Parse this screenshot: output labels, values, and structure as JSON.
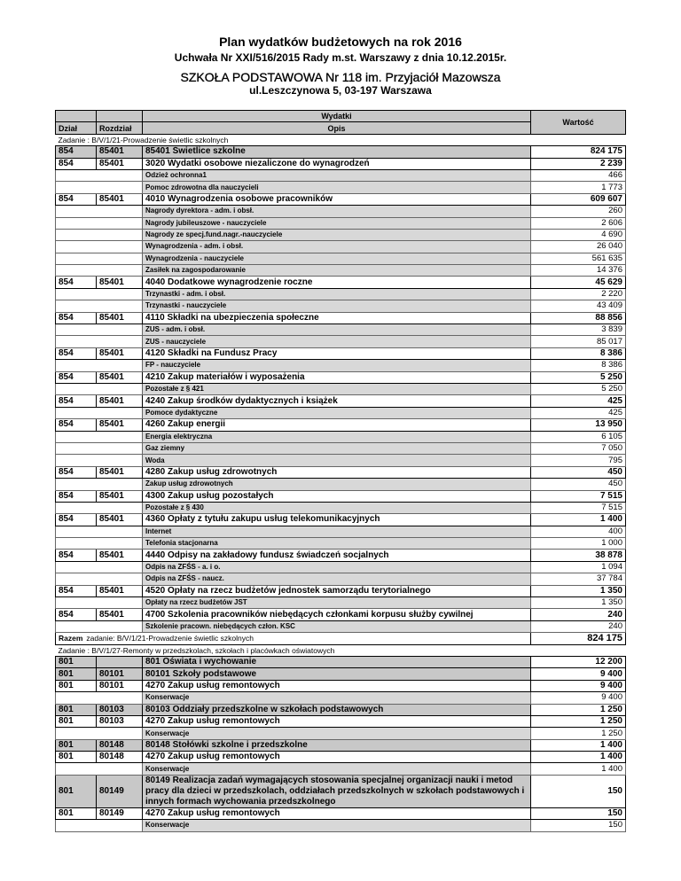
{
  "header": {
    "title": "Plan wydatków budżetowych na rok 2016",
    "resolution": "Uchwała Nr XXI/516/2015 Rady m.st. Warszawy z dnia 10.12.2015r.",
    "school": "SZKOŁA PODSTAWOWA Nr 118 im. Przyjaciół Mazowsza",
    "address": "ul.Leszczynowa 5, 03-197 Warszawa"
  },
  "table": {
    "columns": {
      "group": "Wydatki",
      "dzial": "Dział",
      "rozdzial": "Rozdział",
      "opis": "Opis",
      "wartosc": "Wartość"
    },
    "rows": [
      {
        "style": "section",
        "opis": "Zadanie : B/V/1/21-Prowadzenie świetlic szkolnych"
      },
      {
        "style": "chapter",
        "dzial": "854",
        "rozdzial": "85401",
        "opis": "85401 Świetlice szkolne",
        "wartosc": "824 175"
      },
      {
        "style": "para",
        "dzial": "854",
        "rozdzial": "85401",
        "opis": "3020 Wydatki osobowe niezaliczone do wynagrodzeń",
        "wartosc": "2 239"
      },
      {
        "style": "sub",
        "opis": "Odzież ochronna1",
        "wartosc": "466"
      },
      {
        "style": "sub",
        "opis": "Pomoc zdrowotna dla nauczycieli",
        "wartosc": "1 773"
      },
      {
        "style": "para",
        "dzial": "854",
        "rozdzial": "85401",
        "opis": "4010 Wynagrodzenia osobowe pracowników",
        "wartosc": "609 607"
      },
      {
        "style": "sub",
        "opis": "Nagrody dyrektora - adm. i obsł.",
        "wartosc": "260"
      },
      {
        "style": "sub",
        "opis": "Nagrody jubileuszowe - nauczyciele",
        "wartosc": "2 606"
      },
      {
        "style": "sub",
        "opis": "Nagrody ze specj.fund.nagr.-nauczyciele",
        "wartosc": "4 690"
      },
      {
        "style": "sub",
        "opis": "Wynagrodzenia - adm. i obsł.",
        "wartosc": "26 040"
      },
      {
        "style": "sub",
        "opis": "Wynagrodzenia - nauczyciele",
        "wartosc": "561 635"
      },
      {
        "style": "sub",
        "opis": "Zasiłek na zagospodarowanie",
        "wartosc": "14 376"
      },
      {
        "style": "para",
        "dzial": "854",
        "rozdzial": "85401",
        "opis": "4040 Dodatkowe wynagrodzenie roczne",
        "wartosc": "45 629"
      },
      {
        "style": "sub",
        "opis": "Trzynastki - adm. i obsł.",
        "wartosc": "2 220"
      },
      {
        "style": "sub",
        "opis": "Trzynastki - nauczyciele",
        "wartosc": "43 409"
      },
      {
        "style": "para",
        "dzial": "854",
        "rozdzial": "85401",
        "opis": "4110 Składki na ubezpieczenia społeczne",
        "wartosc": "88 856"
      },
      {
        "style": "sub",
        "opis": "ZUS - adm. i obsł.",
        "wartosc": "3 839"
      },
      {
        "style": "sub",
        "opis": "ZUS - nauczyciele",
        "wartosc": "85 017"
      },
      {
        "style": "para",
        "dzial": "854",
        "rozdzial": "85401",
        "opis": "4120 Składki na Fundusz Pracy",
        "wartosc": "8 386"
      },
      {
        "style": "sub",
        "opis": "FP - nauczyciele",
        "wartosc": "8 386"
      },
      {
        "style": "para",
        "dzial": "854",
        "rozdzial": "85401",
        "opis": "4210 Zakup materiałów i wyposażenia",
        "wartosc": "5 250"
      },
      {
        "style": "sub",
        "opis": "Pozostałe z § 421",
        "wartosc": "5 250"
      },
      {
        "style": "para",
        "dzial": "854",
        "rozdzial": "85401",
        "opis": "4240 Zakup środków dydaktycznych i książek",
        "wartosc": "425"
      },
      {
        "style": "sub",
        "opis": "Pomoce dydaktyczne",
        "wartosc": "425"
      },
      {
        "style": "para",
        "dzial": "854",
        "rozdzial": "85401",
        "opis": "4260 Zakup energii",
        "wartosc": "13 950"
      },
      {
        "style": "sub",
        "opis": "Energia elektryczna",
        "wartosc": "6 105"
      },
      {
        "style": "sub",
        "opis": "Gaz ziemny",
        "wartosc": "7 050"
      },
      {
        "style": "sub",
        "opis": "Woda",
        "wartosc": "795"
      },
      {
        "style": "para",
        "dzial": "854",
        "rozdzial": "85401",
        "opis": "4280 Zakup usług zdrowotnych",
        "wartosc": "450"
      },
      {
        "style": "sub",
        "opis": "Zakup usług zdrowotnych",
        "wartosc": "450"
      },
      {
        "style": "para",
        "dzial": "854",
        "rozdzial": "85401",
        "opis": "4300 Zakup usług pozostałych",
        "wartosc": "7 515"
      },
      {
        "style": "sub",
        "opis": "Pozostałe z § 430",
        "wartosc": "7 515"
      },
      {
        "style": "para",
        "dzial": "854",
        "rozdzial": "85401",
        "opis": "4360 Opłaty z tytułu zakupu usług telekomunikacyjnych",
        "wartosc": "1 400"
      },
      {
        "style": "sub",
        "opis": "Internet",
        "wartosc": "400"
      },
      {
        "style": "sub",
        "opis": "Telefonia stacjonarna",
        "wartosc": "1 000"
      },
      {
        "style": "para",
        "dzial": "854",
        "rozdzial": "85401",
        "opis": "4440 Odpisy na zakładowy fundusz świadczeń socjalnych",
        "wartosc": "38 878"
      },
      {
        "style": "sub",
        "opis": "Odpis na ZFŚS - a. i o.",
        "wartosc": "1 094"
      },
      {
        "style": "sub",
        "opis": "Odpis na ZFŚS - naucz.",
        "wartosc": "37 784"
      },
      {
        "style": "para",
        "dzial": "854",
        "rozdzial": "85401",
        "opis": "4520 Opłaty na rzecz budżetów jednostek samorządu terytorialnego",
        "wartosc": "1 350"
      },
      {
        "style": "sub",
        "opis": "Opłaty na rzecz budżetów JST",
        "wartosc": "1 350"
      },
      {
        "style": "para",
        "dzial": "854",
        "rozdzial": "85401",
        "opis": "4700 Szkolenia pracowników niebędących członkami korpusu służby cywilnej",
        "wartosc": "240"
      },
      {
        "style": "sub",
        "opis": "Szkolenie pracown. niebędących człon. KSC",
        "wartosc": "240"
      },
      {
        "style": "total",
        "label": "Razem",
        "opis": "zadanie: B/V/1/21-Prowadzenie świetlic szkolnych",
        "wartosc": "824 175"
      },
      {
        "style": "section",
        "opis": "Zadanie : B/V/1/27-Remonty w przedszkolach, szkołach i placówkach oświatowych"
      },
      {
        "style": "chapter",
        "dzial": "801",
        "opis": "801 Oświata i wychowanie",
        "wartosc": "12 200"
      },
      {
        "style": "chapter",
        "dzial": "801",
        "rozdzial": "80101",
        "opis": "80101 Szkoły podstawowe",
        "wartosc": "9 400"
      },
      {
        "style": "para",
        "dzial": "801",
        "rozdzial": "80101",
        "opis": "4270 Zakup usług remontowych",
        "wartosc": "9 400"
      },
      {
        "style": "sub",
        "opis": "Konserwacje",
        "wartosc": "9 400"
      },
      {
        "style": "chapter",
        "dzial": "801",
        "rozdzial": "80103",
        "opis": "80103 Oddziały przedszkolne w szkołach podstawowych",
        "wartosc": "1 250"
      },
      {
        "style": "para",
        "dzial": "801",
        "rozdzial": "80103",
        "opis": "4270 Zakup usług remontowych",
        "wartosc": "1 250"
      },
      {
        "style": "sub",
        "opis": "Konserwacje",
        "wartosc": "1 250"
      },
      {
        "style": "chapter",
        "dzial": "801",
        "rozdzial": "80148",
        "opis": "80148 Stołówki szkolne i przedszkolne",
        "wartosc": "1 400"
      },
      {
        "style": "para",
        "dzial": "801",
        "rozdzial": "80148",
        "opis": "4270 Zakup usług remontowych",
        "wartosc": "1 400"
      },
      {
        "style": "sub",
        "opis": "Konserwacje",
        "wartosc": "1 400"
      },
      {
        "style": "chapter",
        "dzial": "801",
        "rozdzial": "80149",
        "opis": "80149 Realizacja zadań wymagających stosowania specjalnej organizacji nauki i metod pracy dla dzieci w przedszkolach, oddziałach przedszkolnych w szkołach podstawowych i innych formach wychowania przedszkolnego",
        "wartosc": "150"
      },
      {
        "style": "para",
        "dzial": "801",
        "rozdzial": "80149",
        "opis": "4270 Zakup usług remontowych",
        "wartosc": "150"
      },
      {
        "style": "sub",
        "opis": "Konserwacje",
        "wartosc": "150"
      }
    ]
  }
}
